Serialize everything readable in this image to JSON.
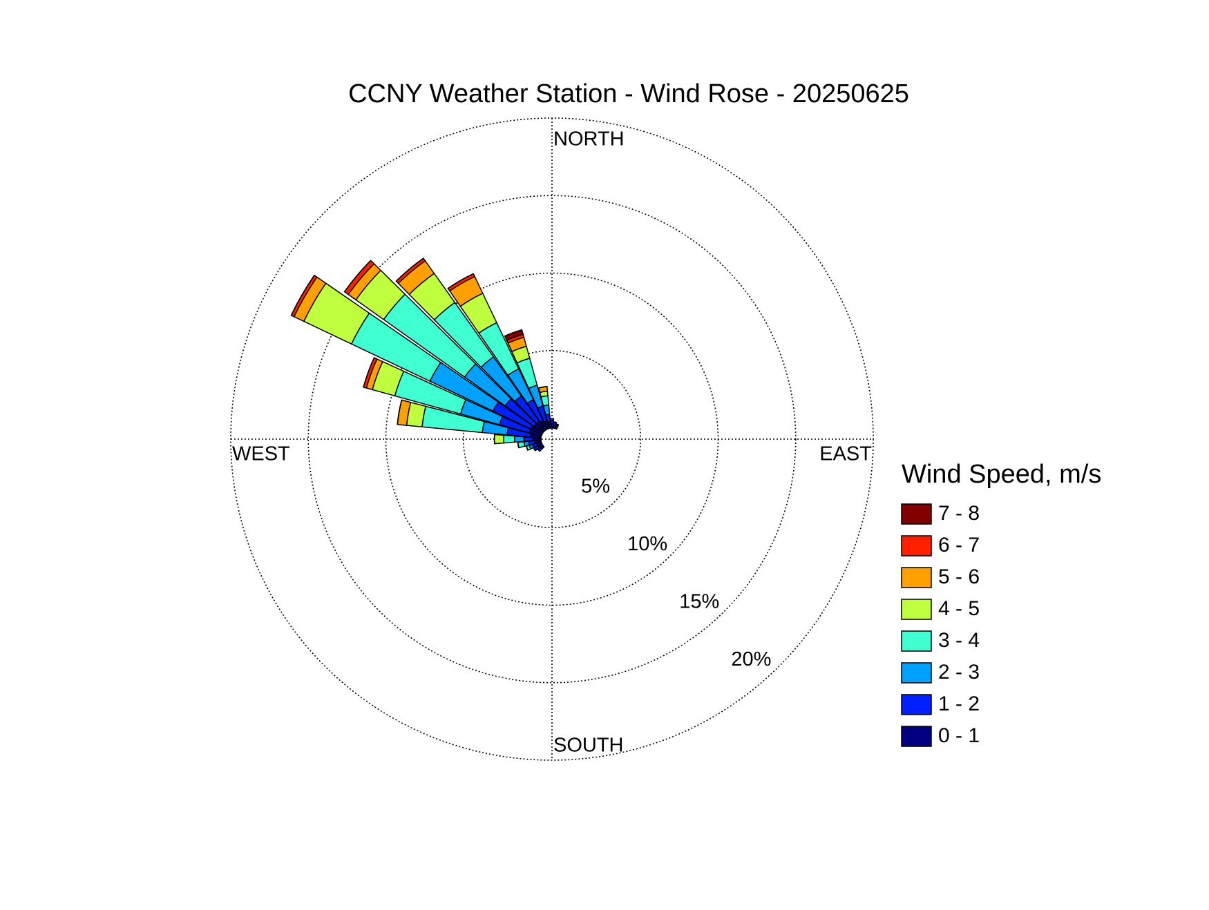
{
  "chart_data": {
    "type": "windrose",
    "title": "CCNY Weather Station - Wind Rose - 20250625",
    "direction_labels": {
      "north": "NORTH",
      "east": "EAST",
      "south": "SOUTH",
      "west": "WEST"
    },
    "legend_title": "Wind Speed, m/s",
    "x": [
      230,
      240,
      250,
      260,
      270,
      280,
      290,
      300,
      310,
      320,
      330,
      340,
      350,
      0,
      10,
      20
    ],
    "rlim": [
      0,
      20
    ],
    "rticks": [
      {
        "value": 5,
        "label": "5%"
      },
      {
        "value": 10,
        "label": "10%"
      },
      {
        "value": 15,
        "label": "15%"
      },
      {
        "value": 20,
        "label": "20%"
      }
    ],
    "grid": true,
    "series": [
      {
        "name": "0 - 1",
        "color": "#000080",
        "values": [
          0.2,
          0.3,
          0.3,
          0.4,
          0.5,
          0.7,
          0.8,
          0.8,
          0.7,
          0.7,
          0.6,
          0.5,
          0.4,
          0.3,
          0.2,
          0.2
        ]
      },
      {
        "name": "1 - 2",
        "color": "#0020ff",
        "values": [
          0.2,
          0.2,
          0.3,
          0.4,
          0.6,
          1.5,
          2.0,
          2.7,
          2.3,
          2.0,
          1.5,
          1.0,
          0.5,
          0.2,
          0.2,
          0.1
        ]
      },
      {
        "name": "2 - 3",
        "color": "#00a0ff",
        "values": [
          0,
          0.1,
          0.2,
          0.3,
          0.6,
          1.6,
          2.6,
          4.5,
          3.2,
          3.1,
          2.2,
          1.4,
          0.6,
          0.1,
          0,
          0
        ]
      },
      {
        "name": "3 - 4",
        "color": "#40ffd0",
        "values": [
          0,
          0,
          0.2,
          0.4,
          0.7,
          3.9,
          4.4,
          5.6,
          6.4,
          4.3,
          3.3,
          1.8,
          0.6,
          0,
          0,
          0
        ]
      },
      {
        "name": "4 - 5",
        "color": "#c0ff40",
        "values": [
          0,
          0,
          0,
          0,
          0.6,
          1.0,
          1.5,
          3.4,
          2.2,
          2.3,
          2.1,
          0.8,
          0.3,
          0,
          0,
          0
        ]
      },
      {
        "name": "5 - 6",
        "color": "#ffa000",
        "values": [
          0,
          0,
          0,
          0,
          0,
          0.6,
          0.4,
          0.7,
          0.6,
          1.0,
          1.2,
          0.6,
          0.3,
          0,
          0,
          0
        ]
      },
      {
        "name": "6 - 7",
        "color": "#ff2000",
        "values": [
          0,
          0,
          0,
          0,
          0,
          0,
          0.2,
          0.2,
          0.3,
          0.2,
          0.2,
          0.2,
          0,
          0,
          0,
          0
        ]
      },
      {
        "name": "7 - 8",
        "color": "#800000",
        "values": [
          0,
          0,
          0,
          0,
          0,
          0,
          0,
          0,
          0,
          0,
          0,
          0.3,
          0,
          0,
          0,
          0
        ]
      }
    ]
  }
}
